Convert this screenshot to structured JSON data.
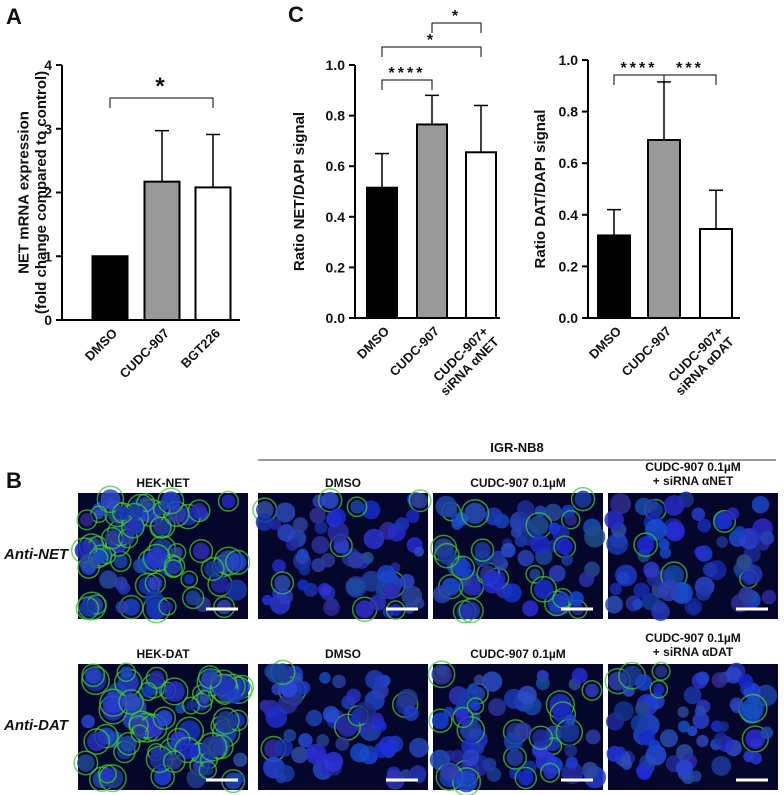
{
  "panel_labels": [
    "A",
    "C",
    "B"
  ],
  "chart_data": [
    {
      "type": "bar",
      "ylabel": "NET mRNA expression\n(fold change compared to control)",
      "categories": [
        "DMSO",
        "CUDC-907",
        "BGT226"
      ],
      "values": [
        1.0,
        2.17,
        2.08
      ],
      "errors": [
        0,
        0.8,
        0.83
      ],
      "colors": [
        "#000000",
        "#999999",
        "#ffffff"
      ],
      "ylim": [
        0,
        4
      ],
      "yticks": [
        0,
        1,
        2,
        3,
        4
      ],
      "brackets": [
        {
          "between": [
            "DMSO",
            "BGT226"
          ],
          "label": "*"
        }
      ]
    },
    {
      "type": "bar",
      "ylabel": "Ratio NET/DAPI signal",
      "categories": [
        "DMSO",
        "CUDC-907",
        "CUDC-907+\nsiRNA αNET"
      ],
      "values": [
        0.515,
        0.765,
        0.655
      ],
      "errors": [
        0.135,
        0.115,
        0.185
      ],
      "colors": [
        "#000000",
        "#999999",
        "#ffffff"
      ],
      "ylim": [
        0,
        1.0
      ],
      "yticks": [
        {
          "value": 0,
          "label": "0.0"
        },
        0.2,
        0.4,
        0.6,
        0.8,
        {
          "value": 1.0,
          "label": "1.0"
        }
      ],
      "brackets": [
        {
          "between": [
            "DMSO",
            "CUDC-907"
          ],
          "label": "****"
        },
        {
          "between": [
            "DMSO",
            "CUDC-907+\nsiRNA αNET"
          ],
          "label": "*"
        },
        {
          "between": [
            "CUDC-907",
            "CUDC-907+\nsiRNA αNET"
          ],
          "label": "*"
        }
      ]
    },
    {
      "type": "bar",
      "ylabel": "Ratio DAT/DAPI signal",
      "categories": [
        "DMSO",
        "CUDC-907",
        "CUDC-907+\nsiRNA αDAT"
      ],
      "values": [
        0.32,
        0.69,
        0.345
      ],
      "errors": [
        0.1,
        0.225,
        0.15
      ],
      "colors": [
        "#000000",
        "#999999",
        "#ffffff"
      ],
      "ylim": [
        0,
        1.0
      ],
      "yticks": [
        {
          "value": 0,
          "label": "0.0"
        },
        0.2,
        0.4,
        0.6,
        0.8,
        {
          "value": 1.0,
          "label": "1.0"
        }
      ],
      "brackets": [
        {
          "between": [
            "DMSO",
            "CUDC-907"
          ],
          "label": "****"
        },
        {
          "between": [
            "CUDC-907",
            "CUDC-907+\nsiRNA αDAT"
          ],
          "label": "***"
        }
      ]
    }
  ],
  "microscopy": {
    "group_label": "IGR-NB8",
    "rows": [
      {
        "label": "Anti-NET",
        "titles": [
          "HEK-NET",
          "DMSO",
          "CUDC-907 0.1µM",
          "CUDC-907 0.1µM\n+ siRNA αNET"
        ]
      },
      {
        "label": "Anti-DAT",
        "titles": [
          "HEK-DAT",
          "DMSO",
          "CUDC-907 0.1µM",
          "CUDC-907 0.1µM\n+ siRNA αDAT"
        ]
      }
    ]
  }
}
